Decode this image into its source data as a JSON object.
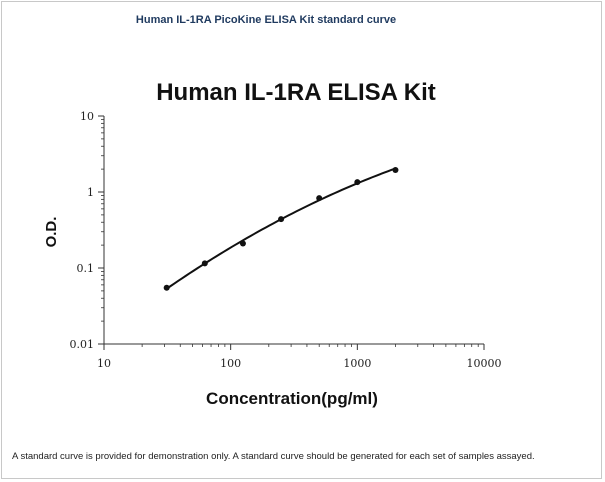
{
  "caption": "Human IL-1RA PicoKine ELISA Kit standard curve",
  "footnote": "A standard curve is provided for demonstration only. A standard curve should be generated for each set of samples assayed.",
  "chart_data": {
    "type": "scatter",
    "title": "Human IL-1RA ELISA Kit",
    "xlabel": "Concentration(pg/ml)",
    "ylabel": "O.D.",
    "x_scale": "log",
    "y_scale": "log",
    "xlim": [
      10,
      10000
    ],
    "ylim": [
      0.01,
      10
    ],
    "x_ticks": [
      {
        "value": 10,
        "label": "10"
      },
      {
        "value": 100,
        "label": "100"
      },
      {
        "value": 1000,
        "label": "1000"
      },
      {
        "value": 10000,
        "label": "10000"
      }
    ],
    "y_ticks": [
      {
        "value": 0.01,
        "label": "0.01"
      },
      {
        "value": 0.1,
        "label": "0.1"
      },
      {
        "value": 1,
        "label": "1"
      },
      {
        "value": 10,
        "label": "10"
      }
    ],
    "grid": false,
    "series": [
      {
        "x": [
          31.25,
          62.5,
          125,
          250,
          500,
          1000,
          2000
        ],
        "y": [
          0.055,
          0.115,
          0.21,
          0.44,
          0.83,
          1.35,
          1.95
        ]
      }
    ],
    "fit_curve": true,
    "colors": {
      "marker": "#111111",
      "line": "#111111",
      "axis": "#333333"
    }
  }
}
